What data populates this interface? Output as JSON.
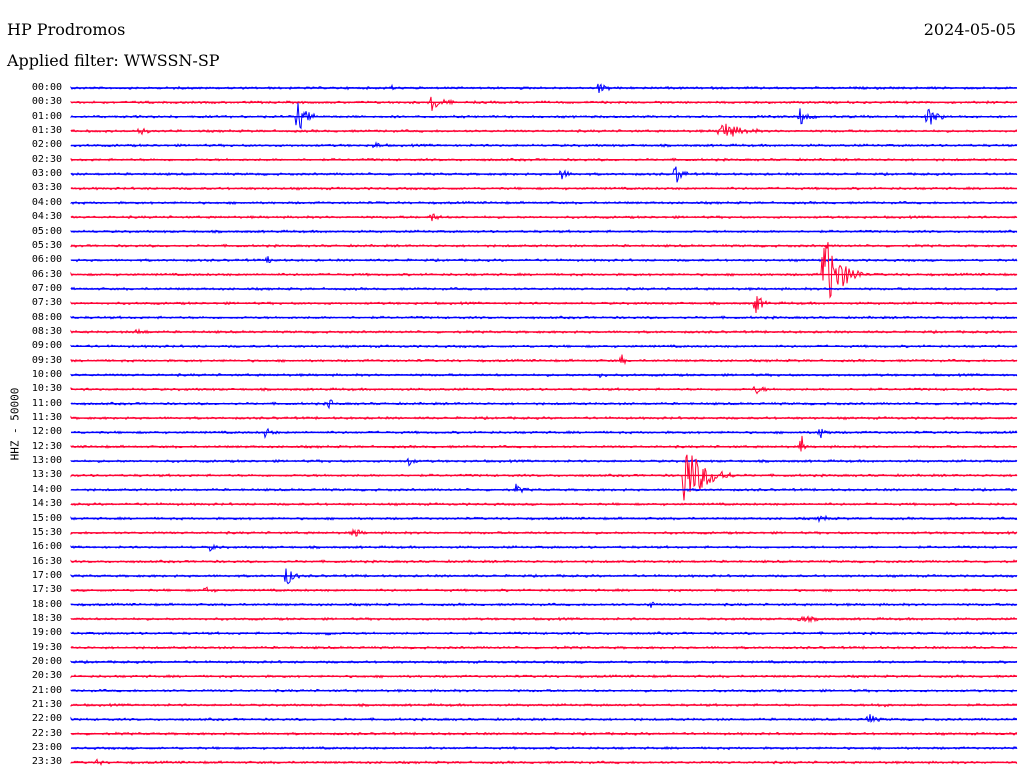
{
  "header": {
    "station": "HP Prodromos",
    "date": "2024-05-05",
    "filter": "Applied filter: WWSSN-SP"
  },
  "y_axis_label": "HHZ - 50000",
  "colors": {
    "even_trace": "#0000ff",
    "odd_trace": "#ff0033",
    "background": "#ffffff"
  },
  "rows": [
    {
      "time": "00:00"
    },
    {
      "time": "00:30"
    },
    {
      "time": "01:00"
    },
    {
      "time": "01:30"
    },
    {
      "time": "02:00"
    },
    {
      "time": "02:30"
    },
    {
      "time": "03:00"
    },
    {
      "time": "03:30"
    },
    {
      "time": "04:00"
    },
    {
      "time": "04:30"
    },
    {
      "time": "05:00"
    },
    {
      "time": "05:30"
    },
    {
      "time": "06:00"
    },
    {
      "time": "06:30"
    },
    {
      "time": "07:00"
    },
    {
      "time": "07:30"
    },
    {
      "time": "08:00"
    },
    {
      "time": "08:30"
    },
    {
      "time": "09:00"
    },
    {
      "time": "09:30"
    },
    {
      "time": "10:00"
    },
    {
      "time": "10:30"
    },
    {
      "time": "11:00"
    },
    {
      "time": "11:30"
    },
    {
      "time": "12:00"
    },
    {
      "time": "12:30"
    },
    {
      "time": "13:00"
    },
    {
      "time": "13:30"
    },
    {
      "time": "14:00"
    },
    {
      "time": "14:30"
    },
    {
      "time": "15:00"
    },
    {
      "time": "15:30"
    },
    {
      "time": "16:00"
    },
    {
      "time": "16:30"
    },
    {
      "time": "17:00"
    },
    {
      "time": "17:30"
    },
    {
      "time": "18:00"
    },
    {
      "time": "18:30"
    },
    {
      "time": "19:00"
    },
    {
      "time": "19:30"
    },
    {
      "time": "20:00"
    },
    {
      "time": "20:30"
    },
    {
      "time": "21:00"
    },
    {
      "time": "21:30"
    },
    {
      "time": "22:00"
    },
    {
      "time": "22:30"
    },
    {
      "time": "23:00"
    },
    {
      "time": "23:30"
    }
  ]
}
